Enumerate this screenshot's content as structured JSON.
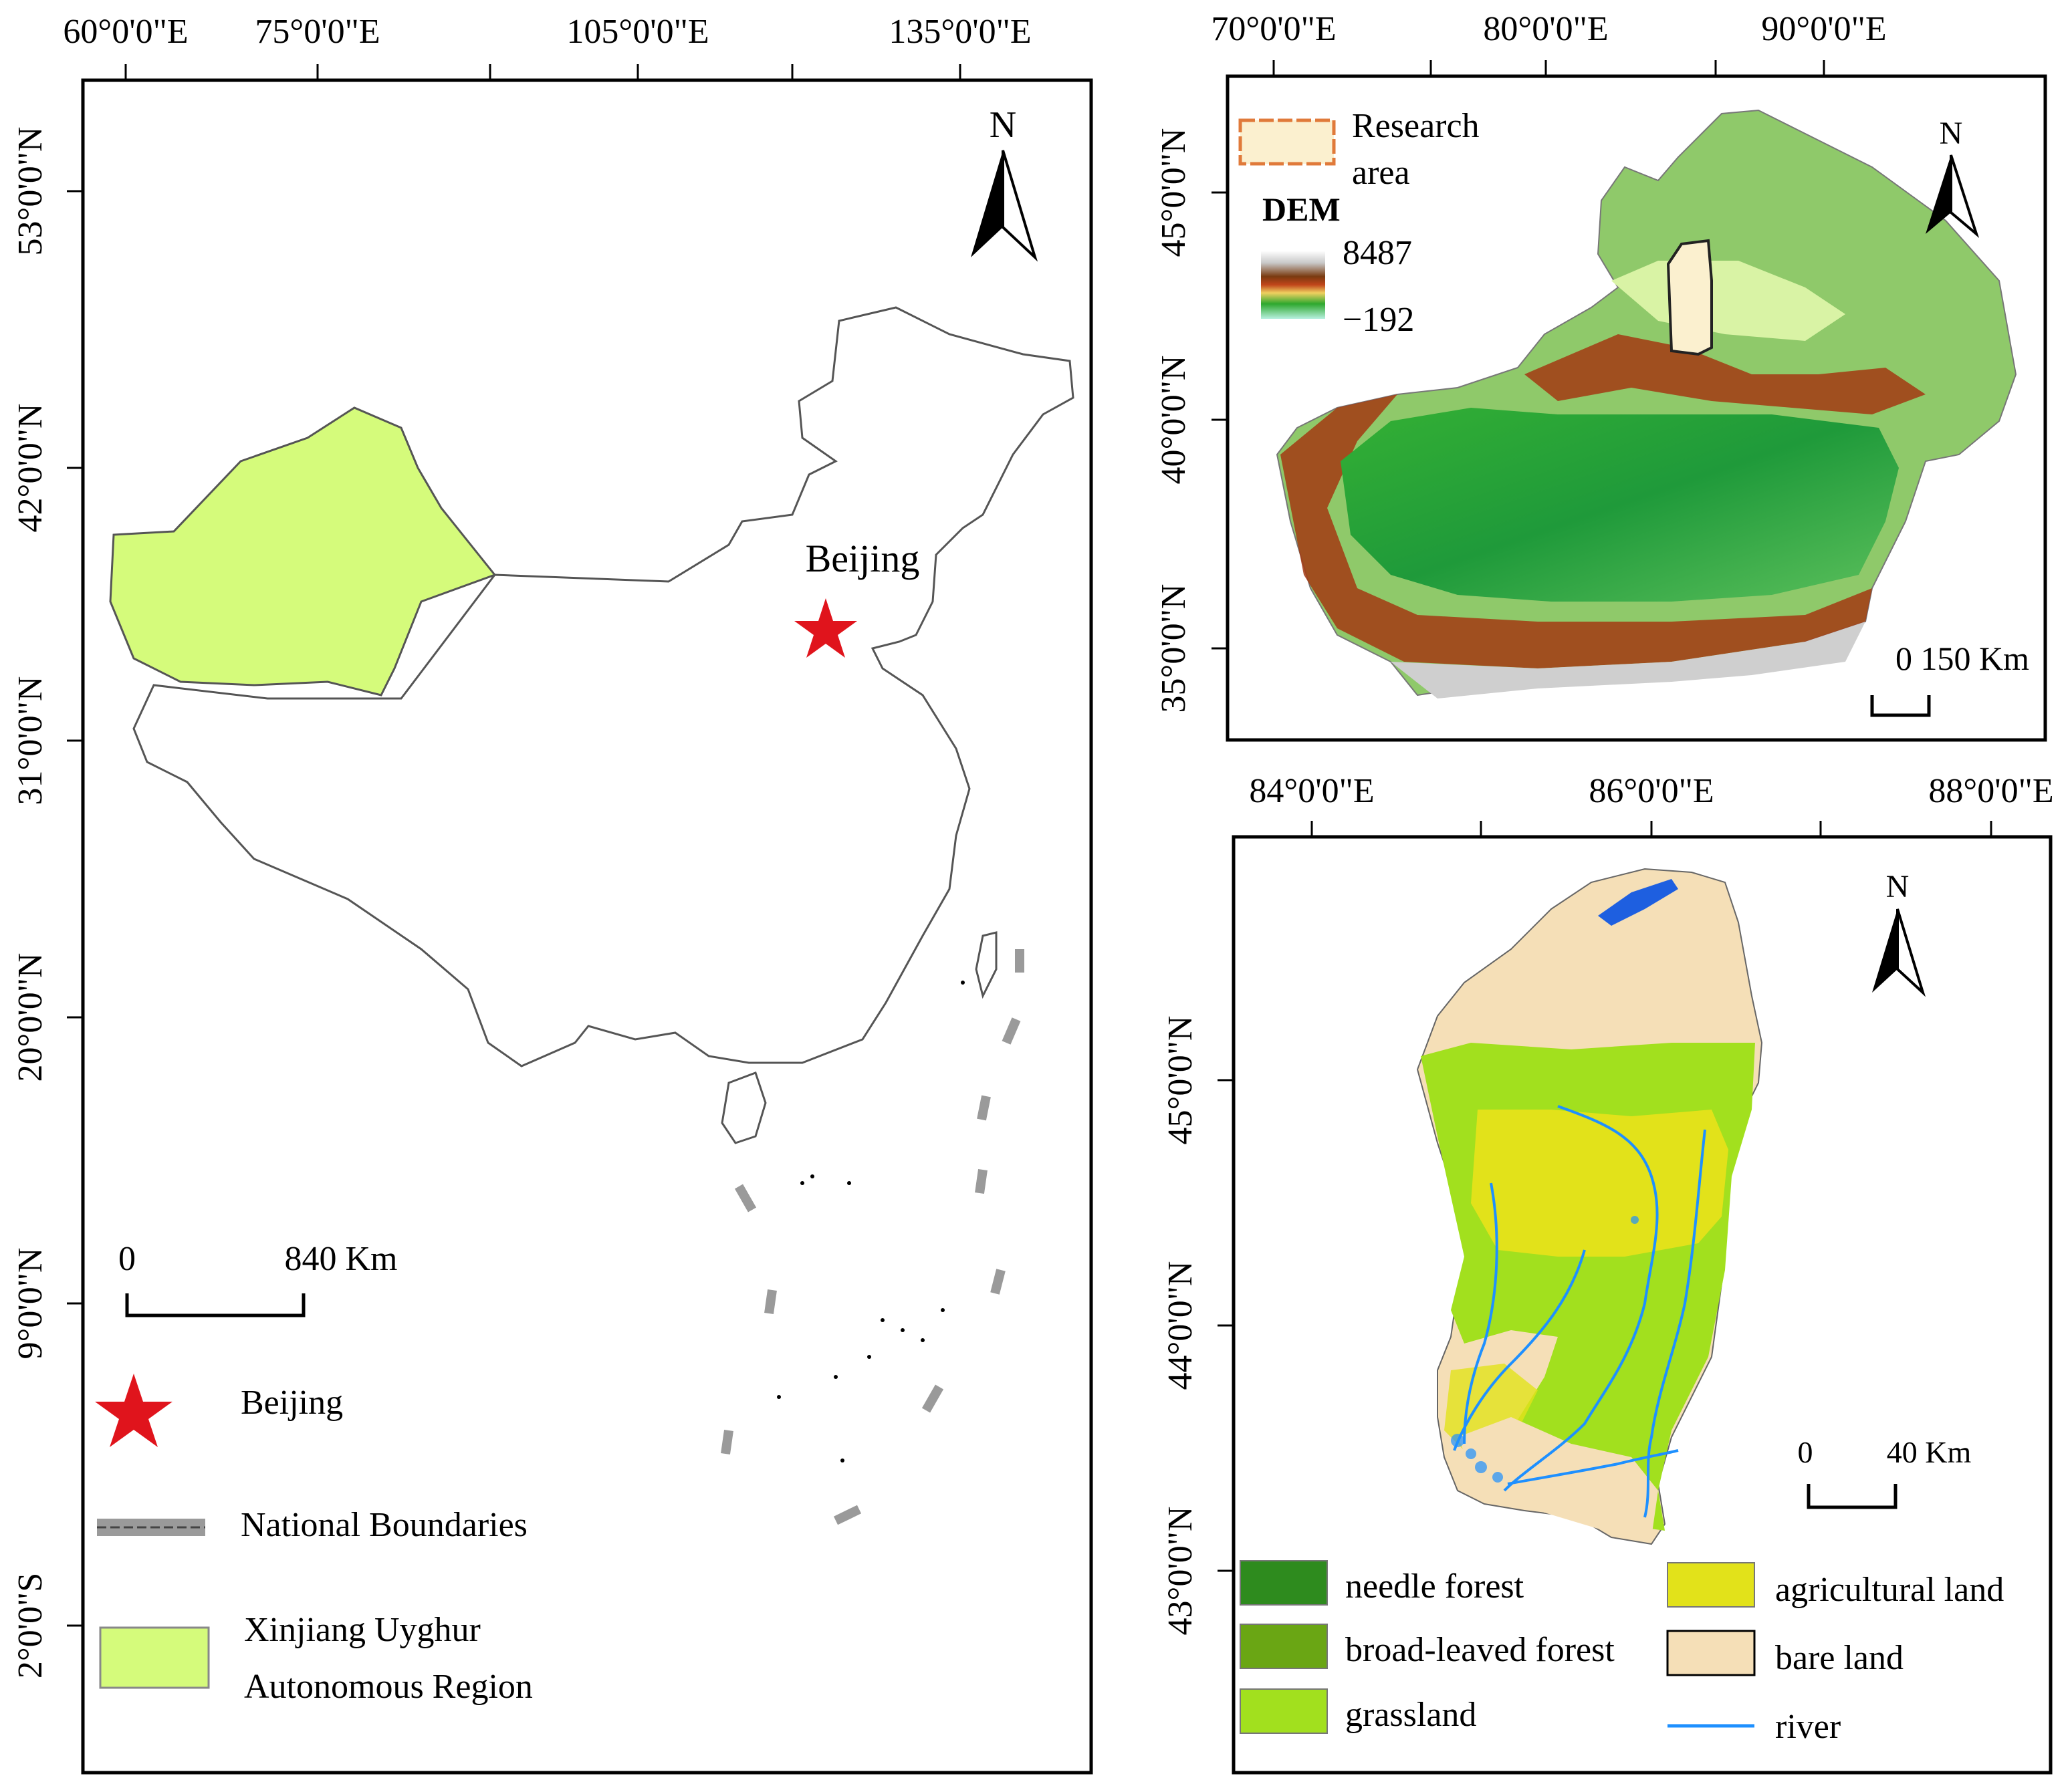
{
  "panel_a": {
    "top_ticks": [
      "60°0'0\"E",
      "75°0'0\"E",
      "105°0'0\"E",
      "135°0'0\"E"
    ],
    "left_ticks": [
      "53°0'0\"N",
      "42°0'0\"N",
      "31°0'0\"N",
      "20°0'0\"N",
      "9°0'0\"N",
      "2°0'0\"S"
    ],
    "north": "N",
    "city_label": "Beijing",
    "scale": {
      "zero": "0",
      "distance": "840 Km"
    },
    "legend": [
      {
        "label": "Beijing"
      },
      {
        "label": "National Boundaries"
      },
      {
        "label": "Xinjiang Uyghur"
      },
      {
        "label": "Autonomous Region"
      }
    ],
    "colors": {
      "xinjiang": "#d5fb7b",
      "star": "#e0141c",
      "boundary": "#9a9a9a"
    }
  },
  "panel_b": {
    "top_ticks": [
      "70°0'0\"E",
      "80°0'0\"E",
      "90°0'0\"E"
    ],
    "left_ticks": [
      "45°0'0\"N",
      "40°0'0\"N",
      "35°0'0\"N"
    ],
    "north": "N",
    "legend_research": [
      "Research",
      "area"
    ],
    "dem_title": "DEM",
    "dem_max": "8487",
    "dem_min": "−192",
    "scale": {
      "text": "0 150 Km"
    },
    "colors": {
      "research_fill": "#fbf0cf",
      "research_border": "#e07a3a"
    }
  },
  "panel_c": {
    "top_ticks": [
      "84°0'0\"E",
      "86°0'0\"E",
      "88°0'0\"E"
    ],
    "left_ticks": [
      "45°0'0\"N",
      "44°0'0\"N",
      "43°0'0\"N"
    ],
    "north": "N",
    "scale": {
      "zero": "0",
      "distance": "40 Km"
    },
    "legend": [
      {
        "label": "needle forest",
        "color": "#2e8b1e"
      },
      {
        "label": "broad-leaved forest",
        "color": "#6aa614"
      },
      {
        "label": "grassland",
        "color": "#a2e01e"
      },
      {
        "label": "agricultural land",
        "color": "#e2e21a"
      },
      {
        "label": "bare land",
        "color": "#f5dfb7"
      },
      {
        "label": "river",
        "color": "#1e90ff"
      }
    ]
  }
}
